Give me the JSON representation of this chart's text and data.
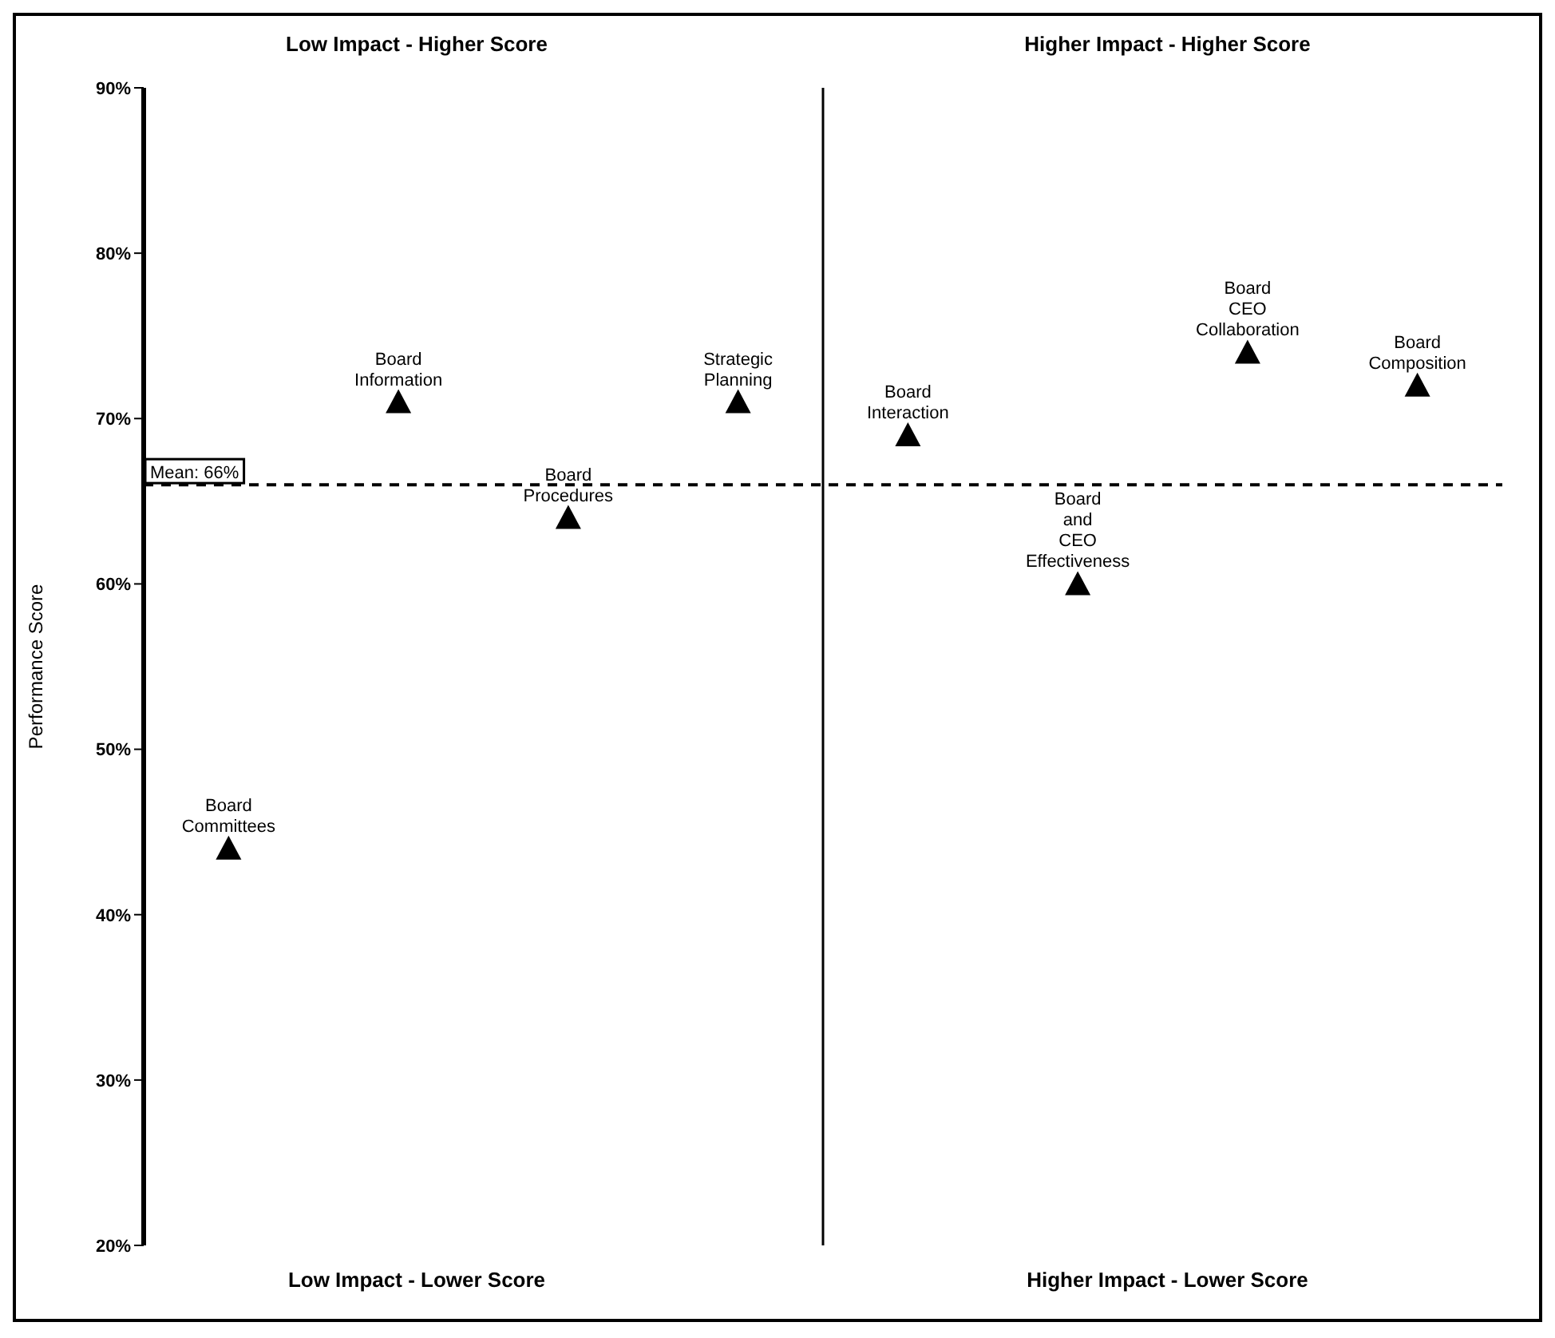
{
  "chart_data": {
    "type": "scatter",
    "ylabel": "Performance Score",
    "categories": [
      null,
      null,
      null,
      null,
      null,
      null,
      null,
      null
    ],
    "series": [
      {
        "name": "Board Committees",
        "color": "#000000",
        "values": [
          44,
          null,
          null,
          null,
          null,
          null,
          null,
          null
        ]
      },
      {
        "name": "Board Information",
        "color": "#000000",
        "values": [
          null,
          71,
          null,
          null,
          null,
          null,
          null,
          null
        ]
      },
      {
        "name": "Board Procedures",
        "color": "#000000",
        "values": [
          null,
          null,
          64,
          null,
          null,
          null,
          null,
          null
        ]
      },
      {
        "name": "Strategic Planning",
        "color": "#000000",
        "values": [
          null,
          null,
          null,
          71,
          null,
          null,
          null,
          null
        ]
      },
      {
        "name": "Board Interaction",
        "color": "#000000",
        "values": [
          null,
          null,
          null,
          null,
          69,
          null,
          null,
          null
        ]
      },
      {
        "name": "Board and CEO Effectiveness",
        "color": "#000000",
        "values": [
          null,
          null,
          null,
          null,
          null,
          60,
          null,
          null
        ]
      },
      {
        "name": "Board CEO Collaboration",
        "color": "#000000",
        "values": [
          null,
          null,
          null,
          null,
          null,
          null,
          74,
          null
        ]
      },
      {
        "name": "Board Composition",
        "color": "#000000",
        "values": [
          null,
          null,
          null,
          null,
          null,
          null,
          null,
          72
        ]
      }
    ],
    "ylim": [
      20,
      90
    ],
    "yticks": [
      {
        "value": 20,
        "label": "20%"
      },
      {
        "value": 30,
        "label": "30%"
      },
      {
        "value": 40,
        "label": "40%"
      },
      {
        "value": 50,
        "label": "50%"
      },
      {
        "value": 60,
        "label": "60%"
      },
      {
        "value": 70,
        "label": "70%"
      },
      {
        "value": 80,
        "label": "80%"
      },
      {
        "value": 90,
        "label": "90%"
      }
    ],
    "ref_lines": [
      {
        "axis": "y",
        "value": 66,
        "label": "Mean: 66%",
        "line_style": "dashed",
        "color": "#000000"
      },
      {
        "axis": "x",
        "value": null,
        "color": "#000000",
        "line_style": "solid"
      }
    ],
    "annotations": [
      "Low Impact - Higher Score",
      "Higher Impact - Higher Score",
      "Low Impact - Lower Score",
      "Higher Impact - Lower Score"
    ],
    "marker": "triangle",
    "grid": false,
    "legend": false,
    "tick_labels": "y"
  }
}
